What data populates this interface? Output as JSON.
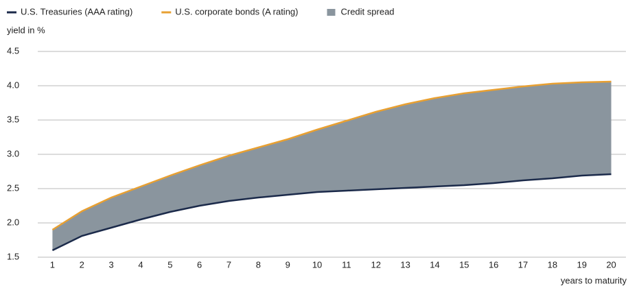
{
  "chart_data": {
    "type": "line",
    "y_label": "yield in %",
    "x_label": "years to maturity",
    "x": [
      1,
      2,
      3,
      4,
      5,
      6,
      7,
      8,
      9,
      10,
      11,
      12,
      13,
      14,
      15,
      16,
      17,
      18,
      19,
      20
    ],
    "xlim": [
      0.5,
      20.5
    ],
    "xticks": [
      1,
      2,
      3,
      4,
      5,
      6,
      7,
      8,
      9,
      10,
      11,
      12,
      13,
      14,
      15,
      16,
      17,
      18,
      19,
      20
    ],
    "ylim": [
      1.5,
      4.5
    ],
    "yticks": [
      {
        "value": 1.5,
        "label": "1.5"
      },
      {
        "value": 2,
        "label": "2.0"
      },
      {
        "value": 2.5,
        "label": "2.5"
      },
      {
        "value": 3,
        "label": "3.0"
      },
      {
        "value": 3.5,
        "label": "3.5"
      },
      {
        "value": 4,
        "label": "4.0"
      },
      {
        "value": 4.5,
        "label": "4.5"
      }
    ],
    "grid": true,
    "series": [
      {
        "name": "U.S. Treasuries (AAA rating)",
        "color": "#1b2a4a",
        "values": [
          1.6,
          1.81,
          1.93,
          2.05,
          2.16,
          2.25,
          2.32,
          2.37,
          2.41,
          2.45,
          2.47,
          2.49,
          2.51,
          2.53,
          2.55,
          2.58,
          2.62,
          2.65,
          2.69,
          2.71
        ]
      },
      {
        "name": "U.S. corporate bonds (A rating)",
        "color": "#e8a032",
        "values": [
          1.9,
          2.17,
          2.37,
          2.53,
          2.69,
          2.84,
          2.98,
          3.1,
          3.22,
          3.36,
          3.49,
          3.62,
          3.73,
          3.82,
          3.89,
          3.94,
          3.99,
          4.03,
          4.05,
          4.06
        ]
      }
    ],
    "area": {
      "name": "Credit spread",
      "color": "#8a959e"
    }
  }
}
